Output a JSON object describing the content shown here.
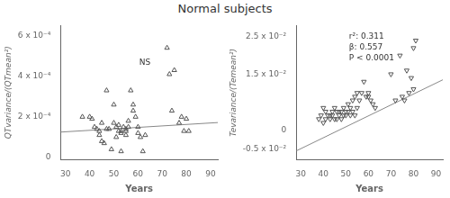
{
  "title": "Normal subjects",
  "chart_data": [
    {
      "type": "scatter",
      "xlabel": "Years",
      "ylabel": "QTvariance/(QTmean²)",
      "xlim": [
        28,
        93
      ],
      "ylim": [
        -1e-05,
        0.00065
      ],
      "xticks": [
        30,
        40,
        50,
        60,
        70,
        80,
        90
      ],
      "yticks": [
        0,
        {
          "value": 0.0002,
          "label": "2 x 10⁻⁴"
        },
        {
          "value": 0.0004,
          "label": "4 x 10⁻⁴"
        },
        {
          "value": 0.0006,
          "label": "6 x 10⁻⁴"
        }
      ],
      "grid": false,
      "annotation": "NS",
      "series": [
        {
          "type": "scatter",
          "marker": "triangle",
          "color": "#555555",
          "x": [
            37,
            40,
            41,
            42,
            43,
            44,
            44,
            45,
            45,
            46,
            47,
            47,
            48,
            49,
            50,
            50,
            51,
            51,
            52,
            52,
            53,
            53,
            53,
            54,
            55,
            55,
            55,
            56,
            56,
            57,
            58,
            58,
            59,
            60,
            60,
            61,
            62,
            63,
            72,
            73,
            74,
            75,
            77,
            78,
            79,
            80,
            81
          ],
          "values": [
            0.0002,
            0.0002,
            0.00019,
            0.00015,
            0.00014,
            0.00013,
            0.00011,
            8e-05,
            0.00017,
            7e-05,
            0.00033,
            0.00014,
            0.00014,
            4e-05,
            0.00026,
            0.00017,
            0.0001,
            0.00015,
            0.00013,
            0.00016,
            0.00013,
            0.00012,
            3e-05,
            0.00015,
            0.00014,
            0.00011,
            0.00013,
            0.00015,
            0.00018,
            0.00033,
            0.00026,
            0.00023,
            0.0002,
            0.00012,
            0.00015,
            0.0001,
            3e-05,
            0.00011,
            0.00054,
            0.00041,
            0.00023,
            0.00043,
            0.00017,
            0.0002,
            0.00013,
            0.00019,
            0.00013
          ]
        },
        {
          "type": "line",
          "color": "#888888",
          "x": [
            28,
            93
          ],
          "values": [
            0.000125,
            0.000172
          ]
        }
      ]
    },
    {
      "type": "scatter",
      "xlabel": "Years",
      "ylabel": "Tevariance/(Temean²)",
      "xlim": [
        28,
        93
      ],
      "ylim": [
        -0.0078,
        0.028
      ],
      "xticks": [
        30,
        40,
        50,
        60,
        70,
        80,
        90
      ],
      "yticks": [
        {
          "value": -0.005,
          "label": "-0.5 x 10⁻²"
        },
        0,
        {
          "value": 0.015,
          "label": "1.5 x 10⁻²"
        },
        {
          "value": 0.025,
          "label": "2.5 x 10⁻²"
        }
      ],
      "grid": false,
      "annotation": "r²: 0.311\nβ: 0.557\nP < 0.0001",
      "series": [
        {
          "type": "scatter",
          "marker": "triangle_down",
          "color": "#555555",
          "x": [
            38,
            39,
            40,
            40,
            41,
            41,
            42,
            43,
            43,
            44,
            44,
            45,
            45,
            46,
            46,
            47,
            47,
            48,
            48,
            49,
            49,
            50,
            50,
            51,
            51,
            52,
            52,
            53,
            53,
            54,
            54,
            55,
            55,
            56,
            57,
            58,
            59,
            60,
            60,
            61,
            62,
            63,
            70,
            72,
            74,
            75,
            76,
            77,
            78,
            79,
            80,
            80,
            81
          ],
          "values": [
            0.003,
            0.004,
            0.006,
            0.002,
            0.005,
            0.003,
            0.004,
            0.004,
            0.003,
            0.005,
            0.004,
            0.003,
            0.006,
            0.005,
            0.003,
            0.004,
            0.005,
            0.003,
            0.005,
            0.006,
            0.004,
            0.005,
            0.004,
            0.007,
            0.005,
            0.006,
            0.004,
            0.008,
            0.005,
            0.009,
            0.004,
            0.01,
            0.006,
            0.008,
            0.01,
            0.013,
            0.009,
            0.01,
            0.009,
            0.008,
            0.007,
            0.006,
            0.015,
            0.008,
            0.02,
            0.009,
            0.008,
            0.016,
            0.01,
            0.014,
            0.011,
            0.022,
            0.024
          ]
        },
        {
          "type": "line",
          "color": "#888888",
          "x": [
            28,
            93
          ],
          "values": [
            -0.0055,
            0.0135
          ]
        }
      ]
    }
  ]
}
